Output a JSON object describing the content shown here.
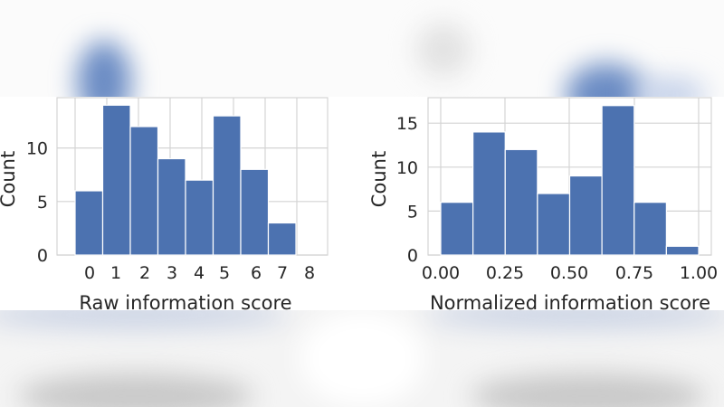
{
  "chart_data": [
    {
      "type": "bar",
      "subtype": "histogram",
      "title": "",
      "xlabel": "Raw information score",
      "ylabel": "Count",
      "categories": [
        "0",
        "1",
        "2",
        "3",
        "4",
        "5",
        "6",
        "7"
      ],
      "values": [
        6,
        14,
        12,
        9,
        7,
        13,
        8,
        3
      ],
      "bin_edges": [
        0,
        0.875,
        1.75,
        2.625,
        3.5,
        4.375,
        5.25,
        6.125,
        7
      ],
      "xticks": [
        "0",
        "1",
        "2",
        "3",
        "4",
        "5",
        "6",
        "7",
        "8"
      ],
      "yticks": [
        "0",
        "5",
        "10"
      ],
      "ylim": [
        0,
        14.7
      ],
      "grid": true,
      "color": "#4C72B0"
    },
    {
      "type": "bar",
      "subtype": "histogram",
      "title": "",
      "xlabel": "Normalized information score",
      "ylabel": "Count",
      "categories": [
        "0.0-0.125",
        "0.125-0.25",
        "0.25-0.375",
        "0.375-0.5",
        "0.5-0.625",
        "0.625-0.75",
        "0.75-0.875",
        "0.875-1.0"
      ],
      "values": [
        6,
        14,
        12,
        7,
        9,
        17,
        6,
        1
      ],
      "bin_edges": [
        0,
        0.125,
        0.25,
        0.375,
        0.5,
        0.625,
        0.75,
        0.875,
        1.0
      ],
      "xticks": [
        "0.00",
        "0.25",
        "0.50",
        "0.75",
        "1.00"
      ],
      "yticks": [
        "0",
        "5",
        "10",
        "15"
      ],
      "ylim": [
        0,
        17.9
      ],
      "grid": true,
      "color": "#4C72B0"
    }
  ],
  "colors": {
    "bar": "#4C72B0",
    "grid": "#d4d4d4",
    "text": "#262626"
  }
}
